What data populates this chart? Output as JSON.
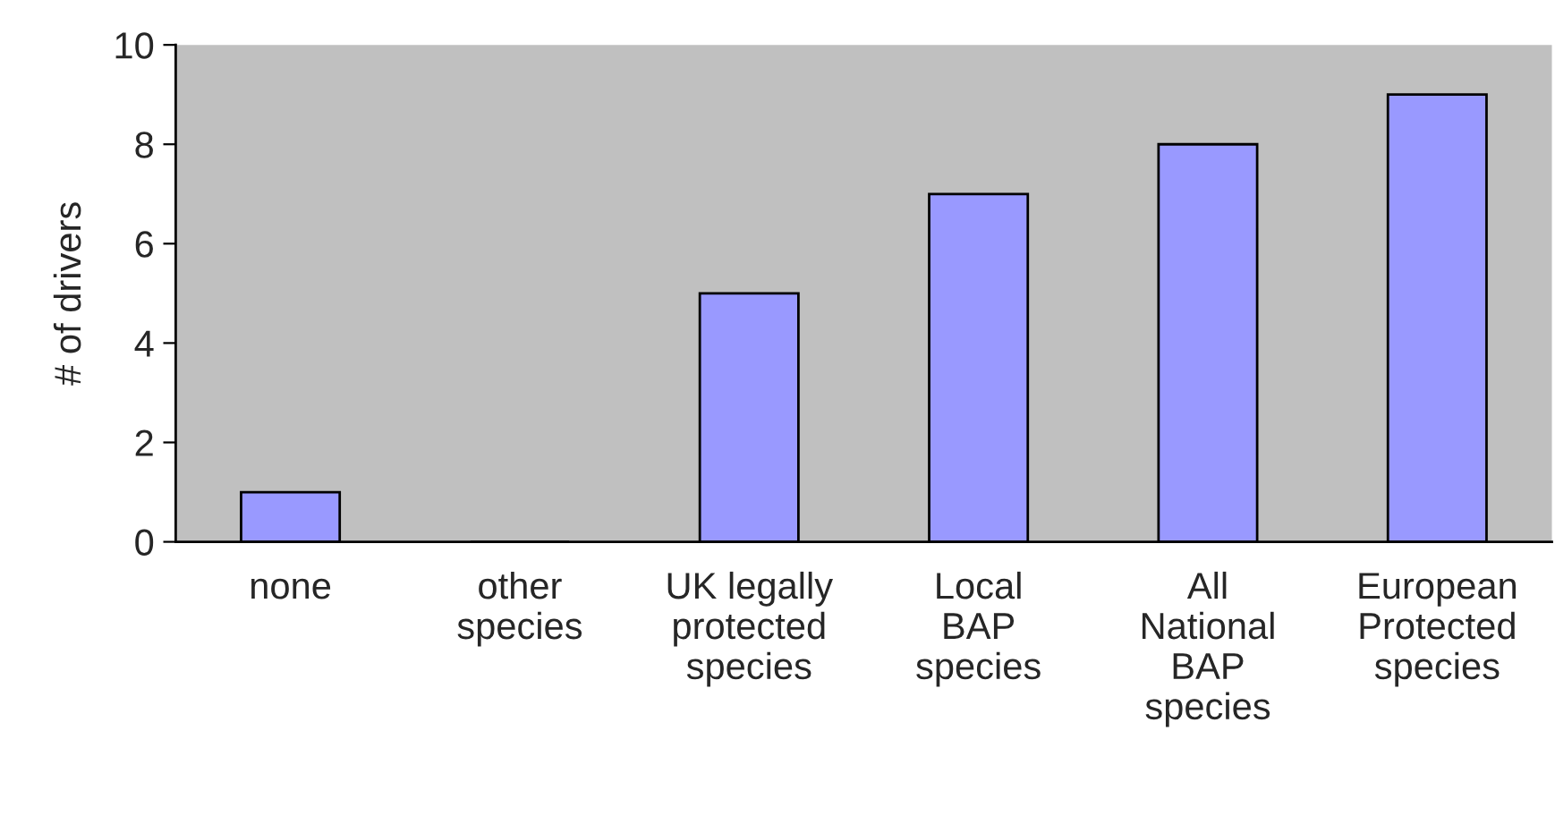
{
  "chart_data": {
    "type": "bar",
    "categories": [
      "none",
      "other\nspecies",
      "UK legally\nprotected\nspecies",
      "Local\nBAP\nspecies",
      "All\nNational\nBAP\nspecies",
      "European\nProtected\nspecies"
    ],
    "values": [
      1,
      0,
      5,
      7,
      8,
      9
    ],
    "color": "#9999ff",
    "ylabel": "# of drivers",
    "ylim": [
      0,
      10
    ],
    "yticks": [
      0,
      2,
      4,
      6,
      8,
      10
    ],
    "grid": false,
    "legend": false
  }
}
